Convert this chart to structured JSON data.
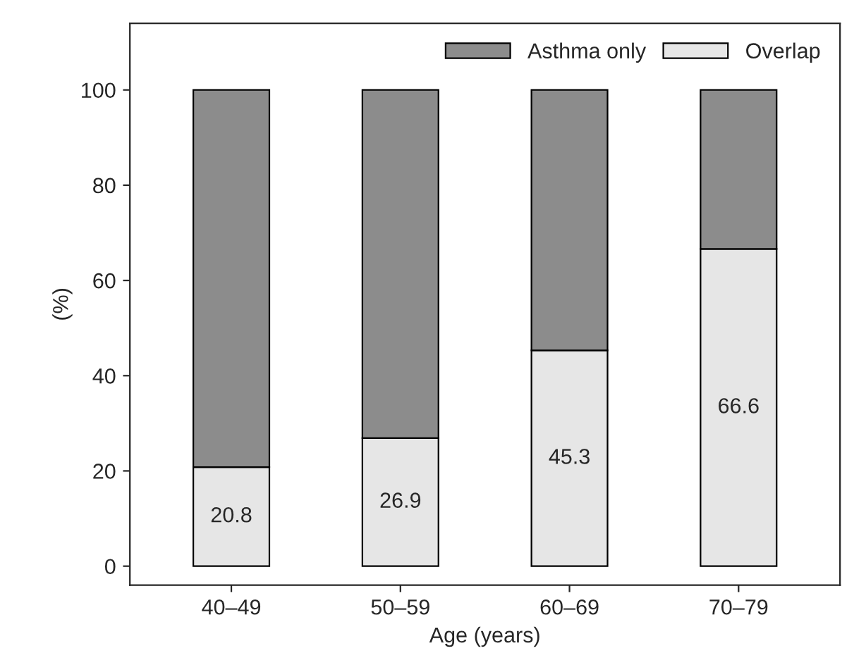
{
  "chart_data": {
    "type": "bar",
    "stacked": true,
    "categories": [
      "40–49",
      "50–59",
      "60–69",
      "70–79"
    ],
    "series": [
      {
        "name": "Overlap",
        "color": "#e6e6e6",
        "values": [
          20.8,
          26.9,
          45.3,
          66.6
        ],
        "value_labels": [
          "20.8",
          "26.9",
          "45.3",
          "66.6"
        ]
      },
      {
        "name": "Asthma only",
        "color": "#8c8c8c",
        "values": [
          79.2,
          73.1,
          54.7,
          33.4
        ]
      }
    ],
    "xlabel": "Age (years)",
    "ylabel": "(%)",
    "ylim": [
      -4,
      114
    ],
    "yticks": [
      0,
      20,
      40,
      60,
      80,
      100
    ],
    "legend": "top right",
    "grid": false
  }
}
